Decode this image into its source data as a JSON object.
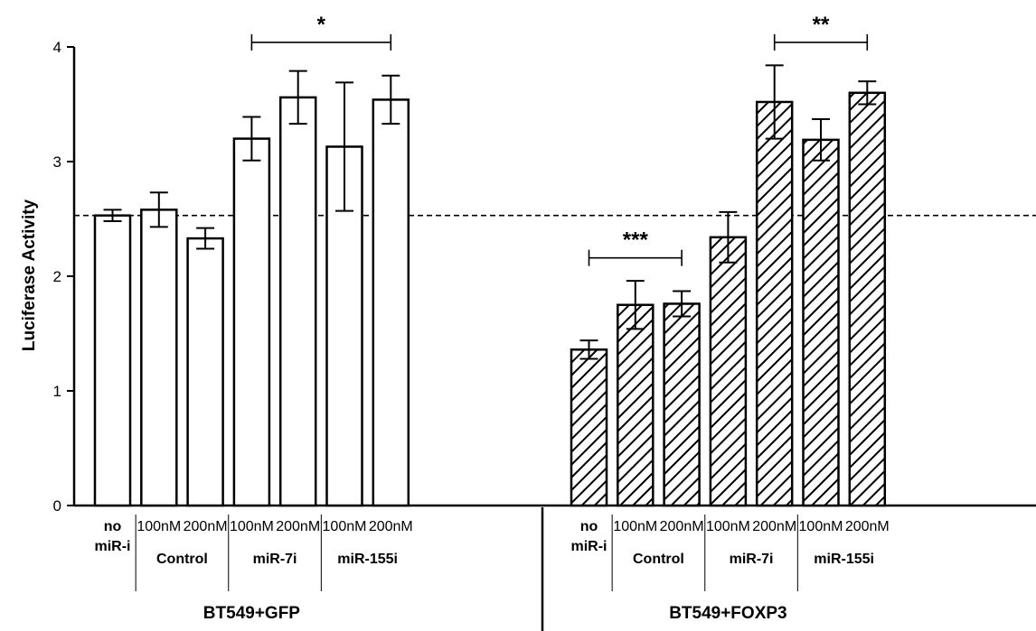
{
  "chart_data": {
    "type": "bar",
    "title": "",
    "xlabel": "",
    "ylabel": "Luciferase Activity",
    "ylim": [
      0,
      4
    ],
    "yticks": [
      0,
      1,
      2,
      3,
      4
    ],
    "grid": false,
    "reference_line": {
      "y": 2.53,
      "style": "dashed"
    },
    "groups": [
      {
        "label": "BT549+GFP",
        "pattern": "none",
        "bars": [
          {
            "top": "no",
            "bottom": "miR-i",
            "value": 2.53,
            "error": 0.05
          },
          {
            "top": "100nM",
            "value": 2.58,
            "error": 0.15
          },
          {
            "top": "200nM",
            "value": 2.33,
            "error": 0.09
          },
          {
            "top": "100nM",
            "value": 3.2,
            "error": 0.19
          },
          {
            "top": "200nM",
            "value": 3.56,
            "error": 0.23
          },
          {
            "top": "100nM",
            "value": 3.13,
            "error": 0.56
          },
          {
            "top": "200nM",
            "value": 3.54,
            "error": 0.21
          }
        ],
        "subgroups": [
          {
            "label": "Control",
            "bars": [
              1,
              2
            ]
          },
          {
            "label": "miR-7i",
            "bars": [
              3,
              4
            ]
          },
          {
            "label": "miR-155i",
            "bars": [
              5,
              6
            ]
          }
        ]
      },
      {
        "label": "BT549+FOXP3",
        "pattern": "diagonal-hatch",
        "bars": [
          {
            "top": "no",
            "bottom": "miR-i",
            "value": 1.36,
            "error": 0.08
          },
          {
            "top": "100nM",
            "value": 1.75,
            "error": 0.21
          },
          {
            "top": "200nM",
            "value": 1.76,
            "error": 0.11
          },
          {
            "top": "100nM",
            "value": 2.34,
            "error": 0.22
          },
          {
            "top": "200nM",
            "value": 3.52,
            "error": 0.32
          },
          {
            "top": "100nM",
            "value": 3.19,
            "error": 0.18
          },
          {
            "top": "200nM",
            "value": 3.6,
            "error": 0.1
          }
        ],
        "subgroups": [
          {
            "label": "Control",
            "bars": [
              1,
              2
            ]
          },
          {
            "label": "miR-7i",
            "bars": [
              3,
              4
            ]
          },
          {
            "label": "miR-155i",
            "bars": [
              5,
              6
            ]
          }
        ]
      }
    ],
    "significance": [
      {
        "group": 0,
        "from": 3,
        "to": 6,
        "y": 4.04,
        "label": "*"
      },
      {
        "group": 1,
        "from": 0,
        "to": 2,
        "y": 2.16,
        "label": "***"
      },
      {
        "group": 1,
        "from": 4,
        "to": 6,
        "y": 4.04,
        "label": "**"
      }
    ]
  }
}
